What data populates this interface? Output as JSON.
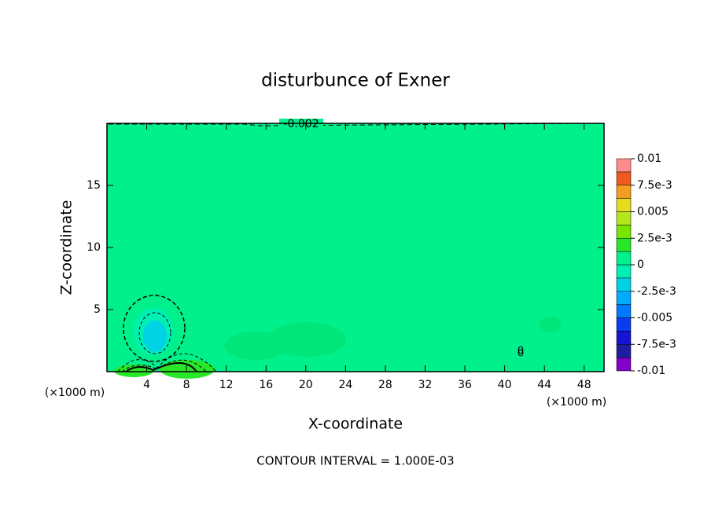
{
  "chart_data": {
    "type": "contour",
    "title": "disturbunce of Exner",
    "xlabel": "X-coordinate",
    "ylabel": "Z-coordinate",
    "x_unit_left": "(×1000 m)",
    "x_unit_right": "(×1000 m)",
    "note": "CONTOUR INTERVAL = 1.000E-03",
    "contour_labels": [
      "-0.002",
      "0"
    ],
    "xlim": [
      0,
      50
    ],
    "ylim": [
      0,
      20
    ],
    "xticks": [
      4,
      8,
      12,
      16,
      20,
      24,
      28,
      32,
      36,
      40,
      44,
      48
    ],
    "yticks": [
      5,
      10,
      15
    ],
    "colorbar_lim": [
      -0.01,
      0.01
    ],
    "colorbar_ticks": [
      {
        "value": -0.01,
        "label": "-0.01"
      },
      {
        "value": -0.0075,
        "label": "-7.5e-3"
      },
      {
        "value": -0.005,
        "label": "-0.005"
      },
      {
        "value": -0.0025,
        "label": "-2.5e-3"
      },
      0,
      {
        "value": 0.0025,
        "label": "2.5e-3"
      },
      0.005,
      {
        "value": 0.0075,
        "label": "7.5e-3"
      },
      0.01
    ],
    "colors": [
      "#8200c8",
      "#1e1ea0",
      "#1414d2",
      "#0a3cf0",
      "#0078ff",
      "#00aaff",
      "#00d2e6",
      "#00f0b4",
      "#00f08c",
      "#28e628",
      "#78e600",
      "#b4e61e",
      "#e6dc1e",
      "#f0a01e",
      "#f05a1e",
      "#ff8c8c"
    ],
    "field_color_index": 8
  }
}
